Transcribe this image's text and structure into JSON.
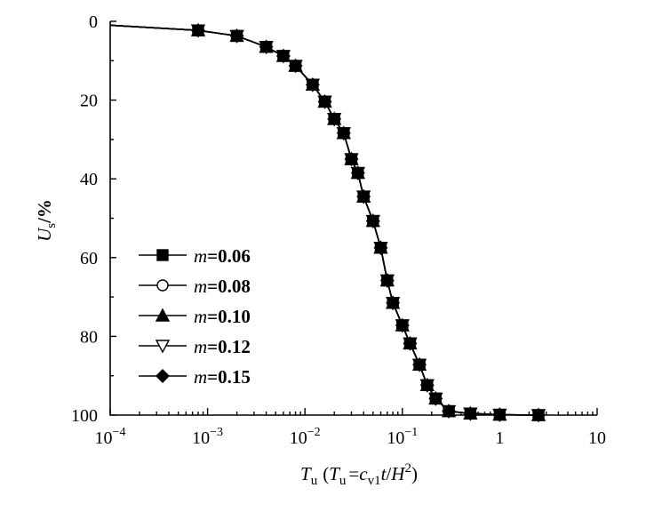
{
  "chart_data": {
    "type": "line",
    "title": "",
    "xlabel": {
      "main": "T",
      "main_sub": "u",
      "paren_open": "(",
      "paren_T": "T",
      "paren_T_sub": "u",
      "equals": "=",
      "c": "c",
      "c_sub": "v1",
      "t": "t",
      "slash": "/",
      "H": "H",
      "H_sup": "2",
      "paren_close": ")"
    },
    "ylabel": {
      "main": "U",
      "sub": "s",
      "unit": "/%"
    },
    "x_scale": "log",
    "xlim": [
      0.0001,
      10
    ],
    "ylim": [
      0,
      100
    ],
    "y_inverted": true,
    "x_ticks": [
      {
        "value": 0.0001,
        "base": "10",
        "exp": "−4"
      },
      {
        "value": 0.001,
        "base": "10",
        "exp": "−3"
      },
      {
        "value": 0.01,
        "base": "10",
        "exp": "−2"
      },
      {
        "value": 0.1,
        "base": "10",
        "exp": "−1"
      },
      {
        "value": 1,
        "base": "1",
        "exp": ""
      },
      {
        "value": 10,
        "base": "10",
        "exp": ""
      }
    ],
    "y_ticks": [
      0,
      20,
      40,
      60,
      80,
      100
    ],
    "grid": false,
    "legend_position": "lower-left",
    "series": [
      {
        "name_var": "m",
        "name_val": "=0.06",
        "marker": "square-filled",
        "x": [
          0.0001,
          0.0008,
          0.002,
          0.004,
          0.006,
          0.008,
          0.012,
          0.016,
          0.02,
          0.025,
          0.03,
          0.035,
          0.04,
          0.05,
          0.06,
          0.07,
          0.08,
          0.1,
          0.12,
          0.15,
          0.18,
          0.22,
          0.3,
          0.5,
          1,
          2.5
        ],
        "y": [
          1,
          2.3,
          3.7,
          6.5,
          8.8,
          11.3,
          16.1,
          20.4,
          24.8,
          28.4,
          35,
          38.5,
          44.5,
          50.7,
          57.5,
          65.8,
          71.5,
          77.2,
          81.8,
          87.2,
          92.4,
          95.8,
          99,
          99.6,
          99.9,
          100
        ]
      },
      {
        "name_var": "m",
        "name_val": "=0.08",
        "marker": "circle-open",
        "x": [
          0.0001,
          0.0008,
          0.002,
          0.004,
          0.006,
          0.008,
          0.012,
          0.016,
          0.02,
          0.025,
          0.03,
          0.035,
          0.04,
          0.05,
          0.06,
          0.07,
          0.08,
          0.1,
          0.12,
          0.15,
          0.18,
          0.22,
          0.3,
          0.5,
          1,
          2.5
        ],
        "y": [
          1,
          2.3,
          3.7,
          6.5,
          8.8,
          11.3,
          16.1,
          20.4,
          24.8,
          28.4,
          35,
          38.5,
          44.5,
          50.7,
          57.5,
          65.8,
          71.5,
          77.2,
          81.8,
          87.2,
          92.4,
          95.8,
          99,
          99.6,
          99.9,
          100
        ]
      },
      {
        "name_var": "m",
        "name_val": "=0.10",
        "marker": "triangle-up-filled",
        "x": [
          0.0001,
          0.0008,
          0.002,
          0.004,
          0.006,
          0.008,
          0.012,
          0.016,
          0.02,
          0.025,
          0.03,
          0.035,
          0.04,
          0.05,
          0.06,
          0.07,
          0.08,
          0.1,
          0.12,
          0.15,
          0.18,
          0.22,
          0.3,
          0.5,
          1,
          2.5
        ],
        "y": [
          1,
          2.3,
          3.7,
          6.5,
          8.8,
          11.3,
          16.1,
          20.4,
          24.8,
          28.4,
          35,
          38.5,
          44.5,
          50.7,
          57.5,
          65.8,
          71.5,
          77.2,
          81.8,
          87.2,
          92.4,
          95.8,
          99,
          99.6,
          99.9,
          100
        ]
      },
      {
        "name_var": "m",
        "name_val": "=0.12",
        "marker": "triangle-down-open",
        "x": [
          0.0001,
          0.0008,
          0.002,
          0.004,
          0.006,
          0.008,
          0.012,
          0.016,
          0.02,
          0.025,
          0.03,
          0.035,
          0.04,
          0.05,
          0.06,
          0.07,
          0.08,
          0.1,
          0.12,
          0.15,
          0.18,
          0.22,
          0.3,
          0.5,
          1,
          2.5
        ],
        "y": [
          1,
          2.3,
          3.7,
          6.5,
          8.8,
          11.3,
          16.1,
          20.4,
          24.8,
          28.4,
          35,
          38.5,
          44.5,
          50.7,
          57.5,
          65.8,
          71.5,
          77.2,
          81.8,
          87.2,
          92.4,
          95.8,
          99,
          99.6,
          99.9,
          100
        ]
      },
      {
        "name_var": "m",
        "name_val": "=0.15",
        "marker": "diamond-filled",
        "x": [
          0.0001,
          0.0008,
          0.002,
          0.004,
          0.006,
          0.008,
          0.012,
          0.016,
          0.02,
          0.025,
          0.03,
          0.035,
          0.04,
          0.05,
          0.06,
          0.07,
          0.08,
          0.1,
          0.12,
          0.15,
          0.18,
          0.22,
          0.3,
          0.5,
          1,
          2.5
        ],
        "y": [
          1,
          2.3,
          3.7,
          6.5,
          8.8,
          11.3,
          16.1,
          20.4,
          24.8,
          28.4,
          35,
          38.5,
          44.5,
          50.7,
          57.5,
          65.8,
          71.5,
          77.2,
          81.8,
          87.2,
          92.4,
          95.8,
          99,
          99.6,
          99.9,
          100
        ]
      }
    ],
    "colors": {
      "line": "#000000",
      "background": "#ffffff"
    }
  }
}
